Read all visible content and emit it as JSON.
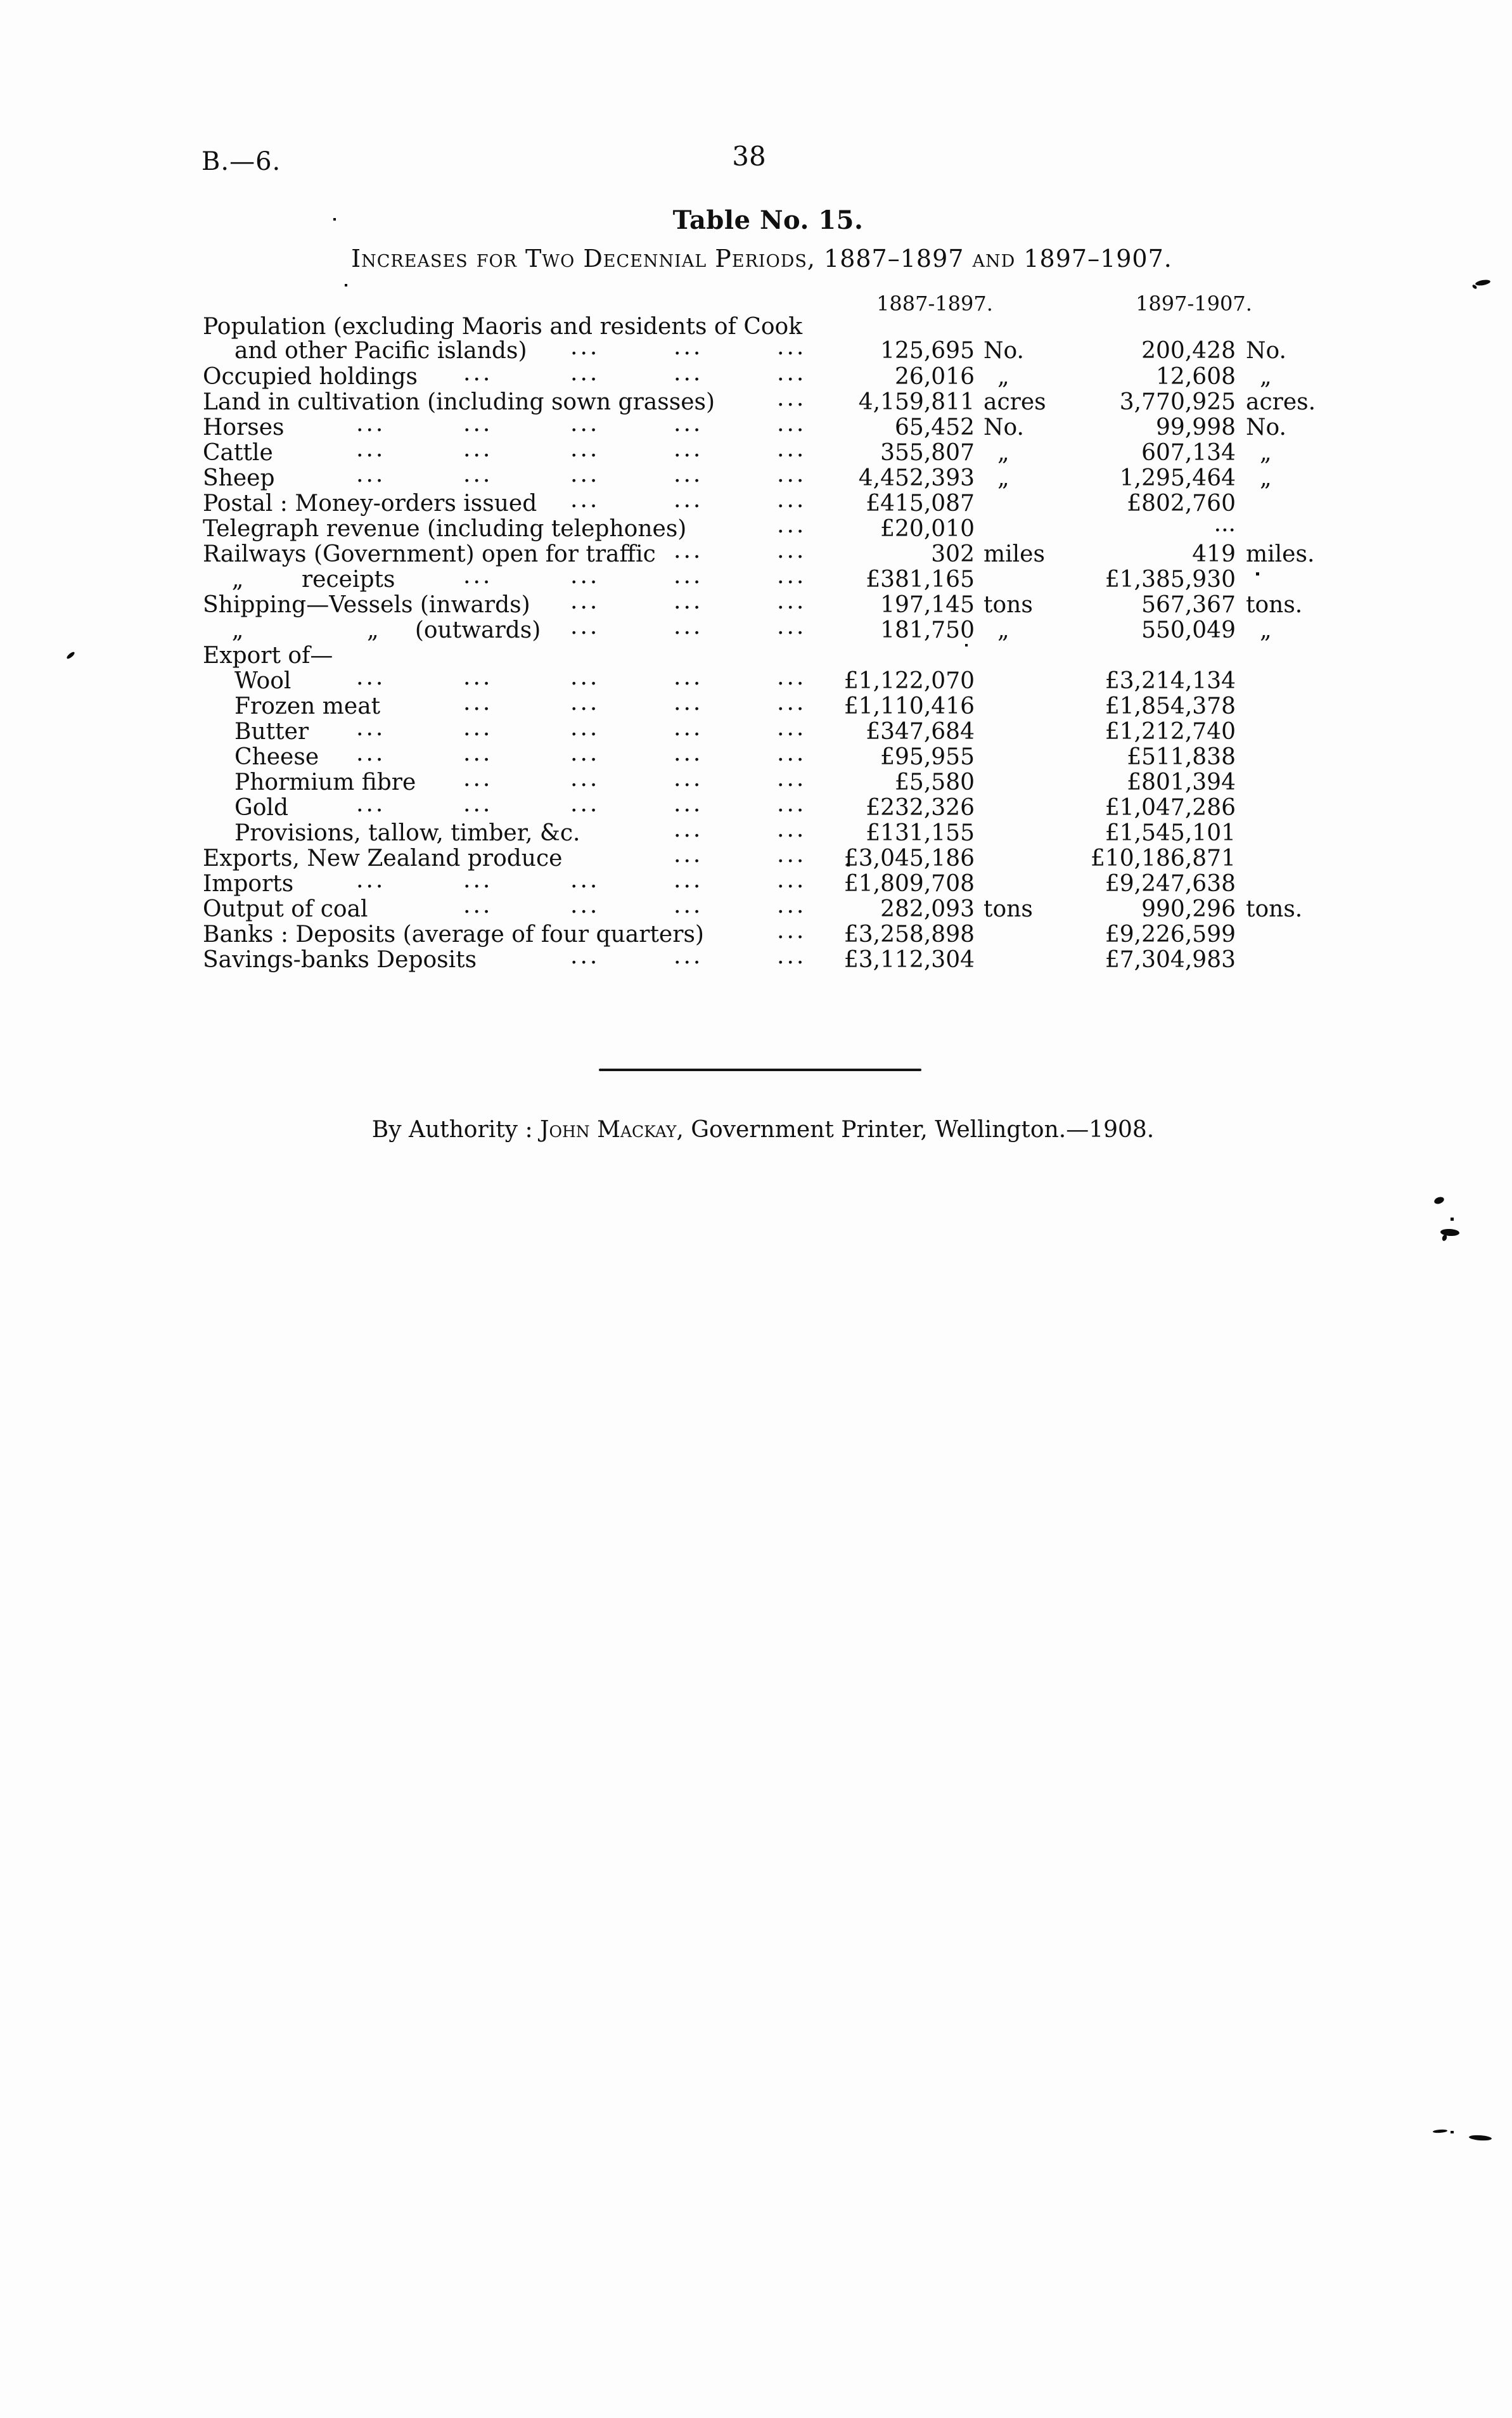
{
  "page": {
    "doc_ref": "B.—6.",
    "page_number": "38",
    "title": "Table No. 15.",
    "subtitle": "Increases for Two Decennial Periods, 1887–1897 and 1897–1907.",
    "footer": {
      "prefix": "By Authority : ",
      "printer_name": "John Mackay",
      "suffix": ", Government Printer, Wellington.—1908."
    }
  },
  "table": {
    "col_headers": [
      "1887-1897.",
      "1897-1907."
    ],
    "rows": [
      {
        "label": "Population (excluding Maoris and residents of Cook",
        "indent": 0,
        "dots": 0,
        "v1": "",
        "u1": "",
        "v2": "",
        "u2": ""
      },
      {
        "label": "and other Pacific islands)",
        "indent": 1,
        "dots": 3,
        "v1": "125,695",
        "u1": "No.",
        "v2": "200,428",
        "u2": "No."
      },
      {
        "label": "Occupied holdings",
        "indent": 0,
        "dots": 4,
        "v1": "26,016",
        "u1": "„",
        "v2": "12,608",
        "u2": "„"
      },
      {
        "label": "Land in cultivation (including sown grasses)",
        "indent": 0,
        "dots": 1,
        "v1": "4,159,811",
        "u1": "acres",
        "v2": "3,770,925",
        "u2": "acres."
      },
      {
        "label": "Horses",
        "indent": 0,
        "dots": 5,
        "v1": "65,452",
        "u1": "No.",
        "v2": "99,998",
        "u2": "No."
      },
      {
        "label": "Cattle",
        "indent": 0,
        "dots": 5,
        "v1": "355,807",
        "u1": "„",
        "v2": "607,134",
        "u2": "„"
      },
      {
        "label": "Sheep",
        "indent": 0,
        "dots": 5,
        "v1": "4,452,393",
        "u1": "„",
        "v2": "1,295,464",
        "u2": "„"
      },
      {
        "label": "Postal : Money-orders issued",
        "indent": 0,
        "dots": 3,
        "v1": "£415,087",
        "u1": "",
        "v2": "£802,760",
        "u2": ""
      },
      {
        "label": "Telegraph revenue (including telephones)",
        "indent": 0,
        "dots": 1,
        "v1": "£20,010",
        "u1": "",
        "v2": "...",
        "u2": ""
      },
      {
        "label": "Railways (Government) open for traffic",
        "indent": 0,
        "dots": 2,
        "v1": "302",
        "u1": "miles",
        "v2": "419",
        "u2": "miles."
      },
      {
        "label": "    „        receipts",
        "indent": 0,
        "dots": 4,
        "v1": "£381,165",
        "u1": "",
        "v2": "£1,385,930",
        "u2": ""
      },
      {
        "label": "Shipping—Vessels (inwards)",
        "indent": 0,
        "dots": 3,
        "v1": "197,145",
        "u1": "tons",
        "v2": "567,367",
        "u2": "tons."
      },
      {
        "label": "    „                 „     (outwards)",
        "indent": 0,
        "dots": 3,
        "v1": "181,750",
        "u1": "„",
        "v2": "550,049",
        "u2": "„"
      },
      {
        "label": "Export of—",
        "indent": 0,
        "dots": 0,
        "v1": "",
        "u1": "",
        "v2": "",
        "u2": ""
      },
      {
        "label": "Wool",
        "indent": 1,
        "dots": 5,
        "v1": "£1,122,070",
        "u1": "",
        "v2": "£3,214,134",
        "u2": ""
      },
      {
        "label": "Frozen meat",
        "indent": 1,
        "dots": 4,
        "v1": "£1,110,416",
        "u1": "",
        "v2": "£1,854,378",
        "u2": ""
      },
      {
        "label": "Butter",
        "indent": 1,
        "dots": 5,
        "v1": "£347,684",
        "u1": "",
        "v2": "£1,212,740",
        "u2": ""
      },
      {
        "label": "Cheese",
        "indent": 1,
        "dots": 5,
        "v1": "£95,955",
        "u1": "",
        "v2": "£511,838",
        "u2": ""
      },
      {
        "label": "Phormium fibre",
        "indent": 1,
        "dots": 4,
        "v1": "£5,580",
        "u1": "",
        "v2": "£801,394",
        "u2": ""
      },
      {
        "label": "Gold",
        "indent": 1,
        "dots": 5,
        "v1": "£232,326",
        "u1": "",
        "v2": "£1,047,286",
        "u2": ""
      },
      {
        "label": "Provisions, tallow, timber, &c.",
        "indent": 1,
        "dots": 2,
        "v1": "£131,155",
        "u1": "",
        "v2": "£1,545,101",
        "u2": ""
      },
      {
        "label": "Exports, New Zealand produce",
        "indent": 0,
        "dots": 2,
        "v1": "£3,045,186",
        "u1": "",
        "v2": "£10,186,871",
        "u2": ""
      },
      {
        "label": "Imports",
        "indent": 0,
        "dots": 5,
        "v1": "£1,809,708",
        "u1": "",
        "v2": "£9,247,638",
        "u2": ""
      },
      {
        "label": "Output of coal",
        "indent": 0,
        "dots": 4,
        "v1": "282,093",
        "u1": "tons",
        "v2": "990,296",
        "u2": "tons."
      },
      {
        "label": "Banks : Deposits (average of four quarters)",
        "indent": 0,
        "dots": 1,
        "v1": "£3,258,898",
        "u1": "",
        "v2": "£9,226,599",
        "u2": ""
      },
      {
        "label": "Savings-banks Deposits",
        "indent": 0,
        "dots": 3,
        "v1": "£3,112,304",
        "u1": "",
        "v2": "£7,304,983",
        "u2": ""
      }
    ]
  }
}
